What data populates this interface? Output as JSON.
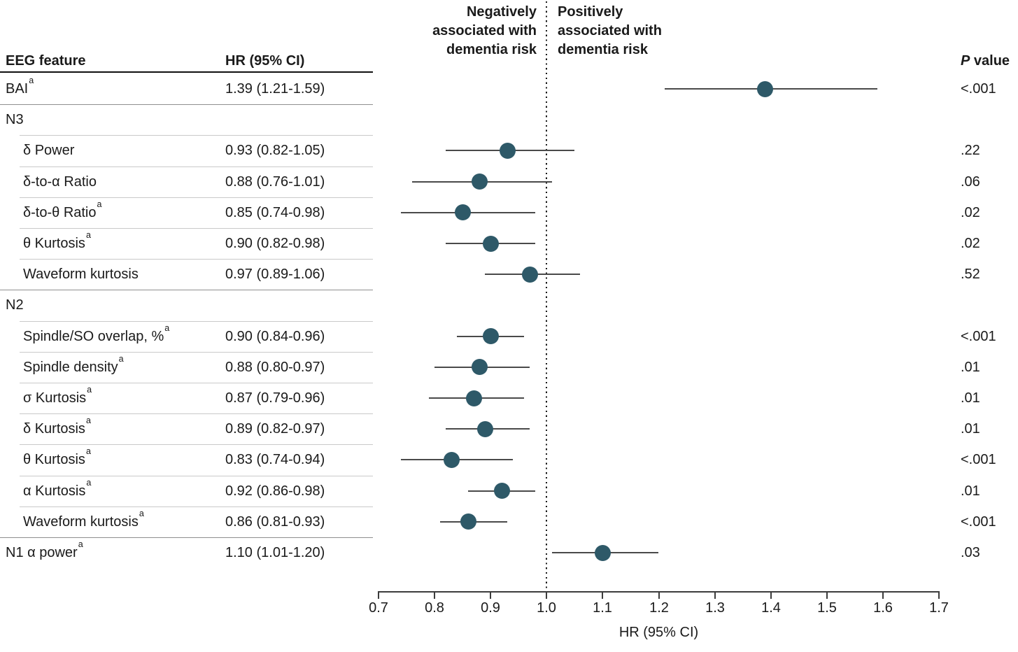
{
  "figure": {
    "neg_header": "Negatively\nassociated with\ndementia risk",
    "pos_header": "Positively\nassociated with\ndementia risk"
  },
  "table": {
    "feature_header": "EEG feature",
    "hr_header": "HR (95% CI)",
    "p_header_italic": "P",
    "p_header_rest": " value",
    "rows": [
      {
        "label": "BAI",
        "sup": "a",
        "indent": false,
        "group": false,
        "hr_text": "1.39 (1.21-1.59)",
        "p": "<.001"
      },
      {
        "label": "N3",
        "sup": "",
        "indent": false,
        "group": true,
        "hr_text": "",
        "p": ""
      },
      {
        "label": "δ Power",
        "sup": "",
        "indent": true,
        "group": false,
        "hr_text": "0.93 (0.82-1.05)",
        "p": ".22"
      },
      {
        "label": "δ-to-α Ratio",
        "sup": "",
        "indent": true,
        "group": false,
        "hr_text": "0.88 (0.76-1.01)",
        "p": ".06"
      },
      {
        "label": "δ-to-θ Ratio",
        "sup": "a",
        "indent": true,
        "group": false,
        "hr_text": "0.85 (0.74-0.98)",
        "p": ".02"
      },
      {
        "label": "θ Kurtosis",
        "sup": "a",
        "indent": true,
        "group": false,
        "hr_text": "0.90 (0.82-0.98)",
        "p": ".02"
      },
      {
        "label": "Waveform kurtosis",
        "sup": "",
        "indent": true,
        "group": false,
        "hr_text": "0.97 (0.89-1.06)",
        "p": ".52"
      },
      {
        "label": "N2",
        "sup": "",
        "indent": false,
        "group": true,
        "hr_text": "",
        "p": ""
      },
      {
        "label": "Spindle/SO overlap, %",
        "sup": "a",
        "indent": true,
        "group": false,
        "hr_text": "0.90 (0.84-0.96)",
        "p": "<.001"
      },
      {
        "label": "Spindle density",
        "sup": "a",
        "indent": true,
        "group": false,
        "hr_text": "0.88 (0.80-0.97)",
        "p": ".01"
      },
      {
        "label": "σ Kurtosis",
        "sup": "a",
        "indent": true,
        "group": false,
        "hr_text": "0.87 (0.79-0.96)",
        "p": ".01"
      },
      {
        "label": "δ Kurtosis",
        "sup": "a",
        "indent": true,
        "group": false,
        "hr_text": "0.89 (0.82-0.97)",
        "p": ".01"
      },
      {
        "label": "θ Kurtosis",
        "sup": "a",
        "indent": true,
        "group": false,
        "hr_text": "0.83 (0.74-0.94)",
        "p": "<.001"
      },
      {
        "label": "α Kurtosis",
        "sup": "a",
        "indent": true,
        "group": false,
        "hr_text": "0.92 (0.86-0.98)",
        "p": ".01"
      },
      {
        "label": "Waveform kurtosis",
        "sup": "a",
        "indent": true,
        "group": false,
        "hr_text": "0.86 (0.81-0.93)",
        "p": "<.001"
      },
      {
        "label": "N1 α power",
        "sup": "a",
        "indent": false,
        "group": false,
        "hr_text": "1.10 (1.01-1.20)",
        "p": ".03"
      }
    ]
  },
  "chart_data": {
    "type": "scatter",
    "subtype": "forest-plot",
    "xlabel": "HR (95% CI)",
    "xlim": [
      0.7,
      1.7
    ],
    "x_ticks": [
      0.7,
      0.8,
      0.9,
      1.0,
      1.1,
      1.2,
      1.3,
      1.4,
      1.5,
      1.6,
      1.7
    ],
    "reference_line": 1.0,
    "grid": false,
    "annotations": {
      "left_of_reference": "Negatively associated with dementia risk",
      "right_of_reference": "Positively associated with dementia risk"
    },
    "points": [
      {
        "row": 0,
        "label": "BAI",
        "est": 1.39,
        "lo": 1.21,
        "hi": 1.59,
        "p": "<.001"
      },
      {
        "row": 2,
        "label": "N3 δ Power",
        "est": 0.93,
        "lo": 0.82,
        "hi": 1.05,
        "p": ".22"
      },
      {
        "row": 3,
        "label": "N3 δ-to-α Ratio",
        "est": 0.88,
        "lo": 0.76,
        "hi": 1.01,
        "p": ".06"
      },
      {
        "row": 4,
        "label": "N3 δ-to-θ Ratio",
        "est": 0.85,
        "lo": 0.74,
        "hi": 0.98,
        "p": ".02"
      },
      {
        "row": 5,
        "label": "N3 θ Kurtosis",
        "est": 0.9,
        "lo": 0.82,
        "hi": 0.98,
        "p": ".02"
      },
      {
        "row": 6,
        "label": "N3 Waveform kurtosis",
        "est": 0.97,
        "lo": 0.89,
        "hi": 1.06,
        "p": ".52"
      },
      {
        "row": 8,
        "label": "N2 Spindle/SO overlap, %",
        "est": 0.9,
        "lo": 0.84,
        "hi": 0.96,
        "p": "<.001"
      },
      {
        "row": 9,
        "label": "N2 Spindle density",
        "est": 0.88,
        "lo": 0.8,
        "hi": 0.97,
        "p": ".01"
      },
      {
        "row": 10,
        "label": "N2 σ Kurtosis",
        "est": 0.87,
        "lo": 0.79,
        "hi": 0.96,
        "p": ".01"
      },
      {
        "row": 11,
        "label": "N2 δ Kurtosis",
        "est": 0.89,
        "lo": 0.82,
        "hi": 0.97,
        "p": ".01"
      },
      {
        "row": 12,
        "label": "N2 θ Kurtosis",
        "est": 0.83,
        "lo": 0.74,
        "hi": 0.94,
        "p": "<.001"
      },
      {
        "row": 13,
        "label": "N2 α Kurtosis",
        "est": 0.92,
        "lo": 0.86,
        "hi": 0.98,
        "p": ".01"
      },
      {
        "row": 14,
        "label": "N2 Waveform kurtosis",
        "est": 0.86,
        "lo": 0.81,
        "hi": 0.93,
        "p": "<.001"
      },
      {
        "row": 15,
        "label": "N1 α power",
        "est": 1.1,
        "lo": 1.01,
        "hi": 1.2,
        "p": ".03"
      }
    ],
    "colors": {
      "marker": "#2e5968",
      "ci_line": "#4a4a4a",
      "axis": "#3c3c3c",
      "text": "#1a1a1a"
    }
  }
}
